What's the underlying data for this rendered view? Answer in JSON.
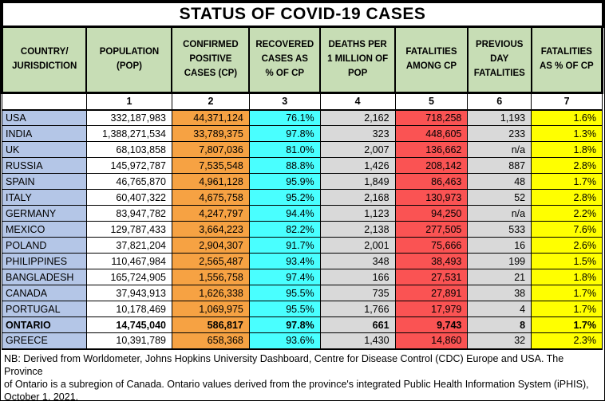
{
  "title": "STATUS OF COVID-19 CASES",
  "colors": {
    "header_bg": "#C7DDB5",
    "country_bg": "#B4C6E7",
    "white_bg": "#FFFFFF",
    "confirmed_bg": "#F6A243",
    "recovered_bg": "#49FFFF",
    "gray_bg": "#D9D9D9",
    "fatalities_bg": "#FA5353",
    "yellow_bg": "#FFFF00"
  },
  "columns": [
    {
      "label": "COUNTRY/\nJURISDICTION",
      "num": ""
    },
    {
      "label": "POPULATION\n(POP)",
      "num": "1"
    },
    {
      "label": "CONFIRMED\nPOSITIVE\nCASES (CP)",
      "num": "2"
    },
    {
      "label": "RECOVERED\nCASES AS\n% OF CP",
      "num": "3"
    },
    {
      "label": "DEATHS PER\n1 MILLION OF\nPOP",
      "num": "4"
    },
    {
      "label": "FATALITIES\nAMONG CP",
      "num": "5"
    },
    {
      "label": "PREVIOUS\nDAY\nFATALITIES",
      "num": "6"
    },
    {
      "label": "FATALITIES\nAS % OF CP",
      "num": "7"
    }
  ],
  "rows": [
    {
      "country": "USA",
      "population": "332,187,983",
      "confirmed": "44,371,124",
      "recovered_pct": "76.1%",
      "deaths_per_million": "2,162",
      "fatalities": "718,258",
      "prev_day_fatalities": "1,193",
      "fatalities_pct": "1.6%",
      "bold": false
    },
    {
      "country": "INDIA",
      "population": "1,388,271,534",
      "confirmed": "33,789,375",
      "recovered_pct": "97.8%",
      "deaths_per_million": "323",
      "fatalities": "448,605",
      "prev_day_fatalities": "233",
      "fatalities_pct": "1.3%",
      "bold": false
    },
    {
      "country": "UK",
      "population": "68,103,858",
      "confirmed": "7,807,036",
      "recovered_pct": "81.0%",
      "deaths_per_million": "2,007",
      "fatalities": "136,662",
      "prev_day_fatalities": "n/a",
      "fatalities_pct": "1.8%",
      "bold": false
    },
    {
      "country": "RUSSIA",
      "population": "145,972,787",
      "confirmed": "7,535,548",
      "recovered_pct": "88.8%",
      "deaths_per_million": "1,426",
      "fatalities": "208,142",
      "prev_day_fatalities": "887",
      "fatalities_pct": "2.8%",
      "bold": false
    },
    {
      "country": "SPAIN",
      "population": "46,765,870",
      "confirmed": "4,961,128",
      "recovered_pct": "95.9%",
      "deaths_per_million": "1,849",
      "fatalities": "86,463",
      "prev_day_fatalities": "48",
      "fatalities_pct": "1.7%",
      "bold": false
    },
    {
      "country": "ITALY",
      "population": "60,407,322",
      "confirmed": "4,675,758",
      "recovered_pct": "95.2%",
      "deaths_per_million": "2,168",
      "fatalities": "130,973",
      "prev_day_fatalities": "52",
      "fatalities_pct": "2.8%",
      "bold": false
    },
    {
      "country": "GERMANY",
      "population": "83,947,782",
      "confirmed": "4,247,797",
      "recovered_pct": "94.4%",
      "deaths_per_million": "1,123",
      "fatalities": "94,250",
      "prev_day_fatalities": "n/a",
      "fatalities_pct": "2.2%",
      "bold": false
    },
    {
      "country": "MEXICO",
      "population": "129,787,433",
      "confirmed": "3,664,223",
      "recovered_pct": "82.2%",
      "deaths_per_million": "2,138",
      "fatalities": "277,505",
      "prev_day_fatalities": "533",
      "fatalities_pct": "7.6%",
      "bold": false
    },
    {
      "country": "POLAND",
      "population": "37,821,204",
      "confirmed": "2,904,307",
      "recovered_pct": "91.7%",
      "deaths_per_million": "2,001",
      "fatalities": "75,666",
      "prev_day_fatalities": "16",
      "fatalities_pct": "2.6%",
      "bold": false
    },
    {
      "country": "PHILIPPINES",
      "population": "110,467,984",
      "confirmed": "2,565,487",
      "recovered_pct": "93.4%",
      "deaths_per_million": "348",
      "fatalities": "38,493",
      "prev_day_fatalities": "199",
      "fatalities_pct": "1.5%",
      "bold": false
    },
    {
      "country": "BANGLADESH",
      "population": "165,724,905",
      "confirmed": "1,556,758",
      "recovered_pct": "97.4%",
      "deaths_per_million": "166",
      "fatalities": "27,531",
      "prev_day_fatalities": "21",
      "fatalities_pct": "1.8%",
      "bold": false
    },
    {
      "country": "CANADA",
      "population": "37,943,913",
      "confirmed": "1,626,338",
      "recovered_pct": "95.5%",
      "deaths_per_million": "735",
      "fatalities": "27,891",
      "prev_day_fatalities": "38",
      "fatalities_pct": "1.7%",
      "bold": false
    },
    {
      "country": "PORTUGAL",
      "population": "10,178,469",
      "confirmed": "1,069,975",
      "recovered_pct": "95.5%",
      "deaths_per_million": "1,766",
      "fatalities": "17,979",
      "prev_day_fatalities": "4",
      "fatalities_pct": "1.7%",
      "bold": false
    },
    {
      "country": "ONTARIO",
      "population": "14,745,040",
      "confirmed": "586,817",
      "recovered_pct": "97.8%",
      "deaths_per_million": "661",
      "fatalities": "9,743",
      "prev_day_fatalities": "8",
      "fatalities_pct": "1.7%",
      "bold": true
    },
    {
      "country": "GREECE",
      "population": "10,391,789",
      "confirmed": "658,368",
      "recovered_pct": "93.6%",
      "deaths_per_million": "1,430",
      "fatalities": "14,860",
      "prev_day_fatalities": "32",
      "fatalities_pct": "2.3%",
      "bold": false
    }
  ],
  "footnote": "NB: Derived from Worldometer, Johns Hopkins University Dashboard, Centre for Disease Control (CDC) Europe and USA. The Province\nof Ontario is a subregion of Canada. Ontario values derived from the province's integrated Public Health Information System (iPHIS),\nOctober 1, 2021."
}
